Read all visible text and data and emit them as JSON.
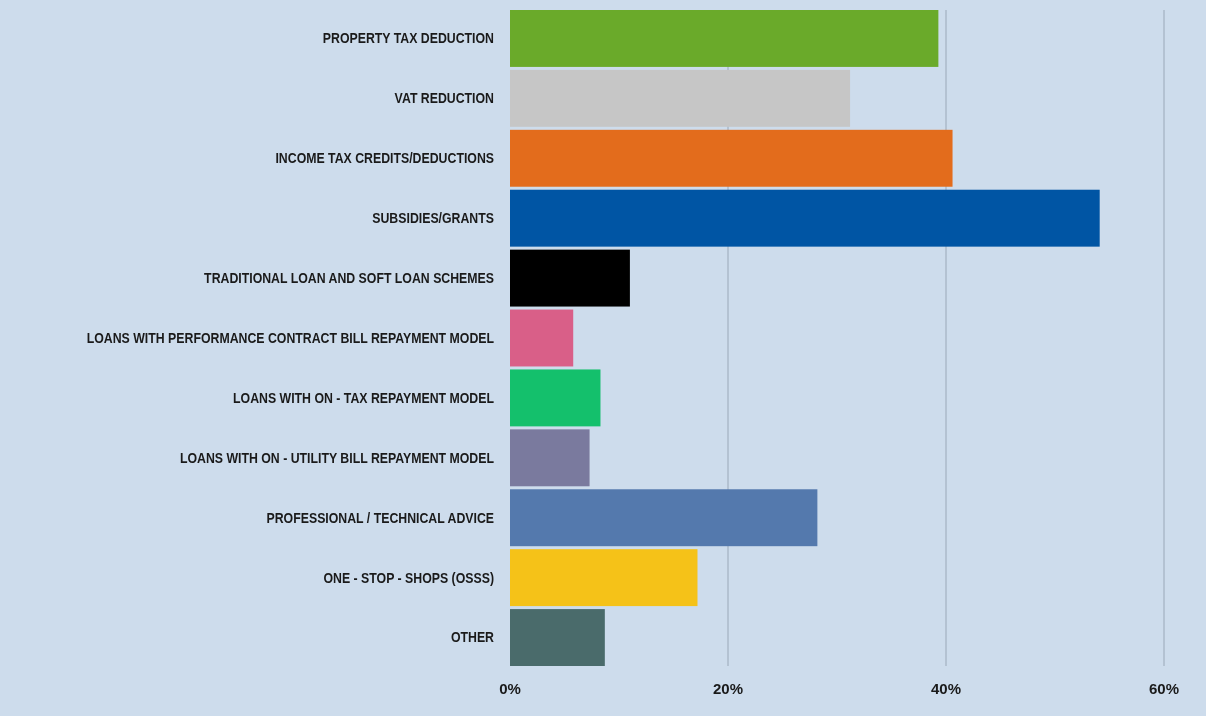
{
  "chart_data": {
    "type": "bar",
    "orientation": "horizontal",
    "categories": [
      "PROPERTY TAX DEDUCTION",
      "VAT REDUCTION",
      "INCOME TAX CREDITS/DEDUCTIONS",
      "SUBSIDIES/GRANTS",
      "TRADITIONAL LOAN AND SOFT LOAN SCHEMES",
      "LOANS WITH PERFORMANCE CONTRACT BILL REPAYMENT MODEL",
      "LOANS WITH ON - TAX REPAYMENT MODEL",
      "LOANS WITH ON - UTILITY BILL REPAYMENT MODEL",
      "PROFESSIONAL / TECHNICAL ADVICE",
      "ONE - STOP - SHOPS (OSSS)",
      "OTHER"
    ],
    "values": [
      39.3,
      31.2,
      40.6,
      54.1,
      11,
      5.8,
      8.3,
      7.3,
      28.2,
      17.2,
      8.7
    ],
    "colors": [
      "#6aaa2a",
      "#c6c6c6",
      "#e36c1c",
      "#0055a4",
      "#000000",
      "#d95f88",
      "#14c06c",
      "#7a7a9e",
      "#5479ad",
      "#f5c218",
      "#4a6b6b"
    ],
    "xlim": [
      0,
      60
    ],
    "xticks": [
      {
        "value": 0,
        "label": "0%"
      },
      {
        "value": 20,
        "label": "20%"
      },
      {
        "value": 40,
        "label": "40%"
      },
      {
        "value": 60,
        "label": "60%"
      }
    ],
    "grid": "x"
  }
}
